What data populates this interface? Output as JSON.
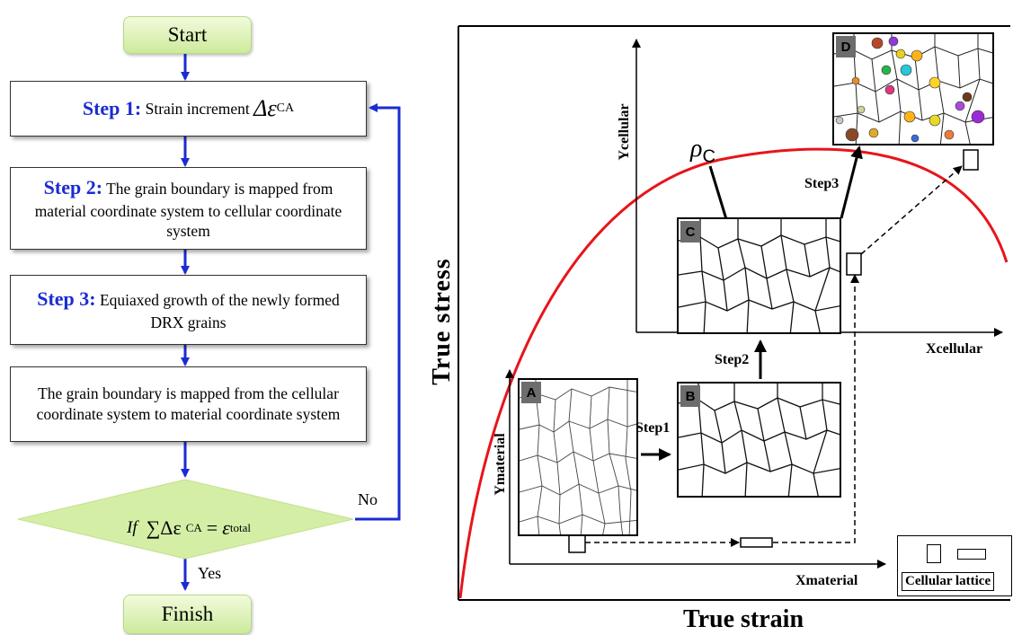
{
  "flowchart": {
    "start_label": "Start",
    "finish_label": "Finish",
    "step1": {
      "label": "Step 1:",
      "text": "Strain increment",
      "symbol": "Δε",
      "subscript": "CA"
    },
    "step2": {
      "label": "Step 2:",
      "text": "The grain boundary is mapped from material coordinate system to cellular coordinate system"
    },
    "step3": {
      "label": "Step 3:",
      "text": "Equiaxed growth of the newly formed DRX grains"
    },
    "step4": {
      "text": "The grain boundary is mapped from the cellular coordinate system to material coordinate system"
    },
    "decision": {
      "if": "If",
      "sum": "∑Δε",
      "sum_sub": "CA",
      "eq": "=",
      "eps": "ε",
      "eps_sub": "total"
    },
    "no_label": "No",
    "yes_label": "Yes",
    "colors": {
      "arrow": "#1a2bd4",
      "terminal_fill": "#d9f0b0",
      "decision_fill": "#d9f0b0"
    }
  },
  "diagram": {
    "y_axis_label": "True stress",
    "x_axis_label": "True strain",
    "rho_symbol": "ρ",
    "rho_sub": "C",
    "material_x": "Xmaterial",
    "material_y": "Ymaterial",
    "cellular_x": "Xcellular",
    "cellular_y": "Ycellular",
    "step1": "Step1",
    "step2": "Step2",
    "step3": "Step3",
    "panel_tags": [
      "A",
      "B",
      "C",
      "D"
    ],
    "legend_label": "Cellular lattice",
    "curve_color": "#e8141a"
  }
}
